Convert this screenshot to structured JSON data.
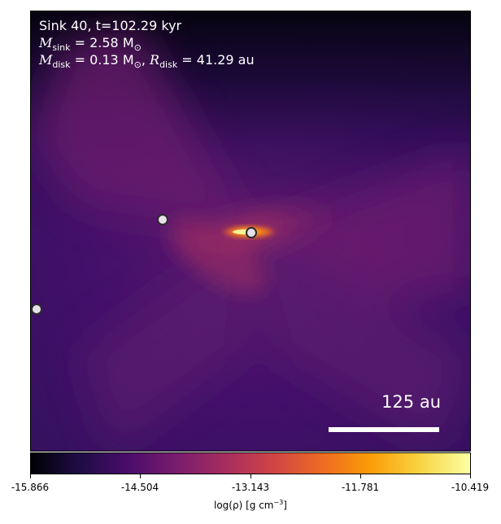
{
  "overlay": {
    "title": "Sink 40, t=102.29 kyr",
    "msink_label": "M",
    "msink_sub": "sink",
    "msink_value": " = 2.58 M",
    "msink_unit_sub": "⊙",
    "mdisk_label": "M",
    "mdisk_sub": "disk",
    "mdisk_value": " = 0.13 M",
    "mdisk_unit_sub": "⊙",
    "rdisk_sep": ", ",
    "rdisk_label": "R",
    "rdisk_sub": "disk",
    "rdisk_value": " = 41.29 au"
  },
  "scalebar": {
    "label": "125 au"
  },
  "colorbar": {
    "colormap": "inferno",
    "ticks": [
      "-15.866",
      "-14.504",
      "-13.143",
      "-11.781",
      "-10.419"
    ],
    "label_main": "log(ρ) [g cm",
    "label_exp": "−3",
    "label_close": "]"
  },
  "colors": {
    "background_purple": "#3a0f6a",
    "sink_fill": "#e6e0ea",
    "scalebar": "#ffffff"
  }
}
